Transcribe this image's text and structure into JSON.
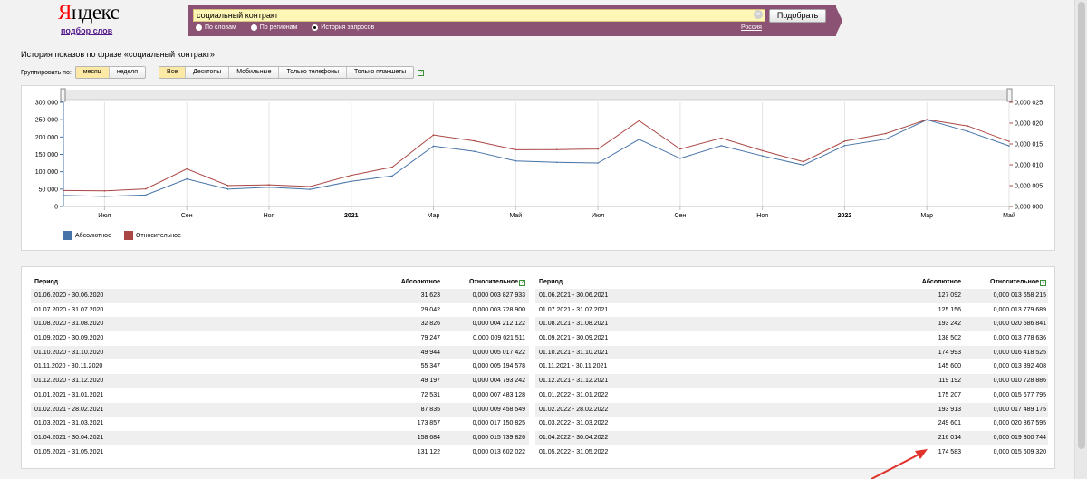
{
  "header": {
    "logo_first": "Я",
    "logo_rest": "ндекс",
    "logo_sub": "подбор слов",
    "search_value": "социальный контракт",
    "search_button": "Подобрать",
    "radios": [
      {
        "label": "По словам",
        "selected": false
      },
      {
        "label": "По регионам",
        "selected": false
      },
      {
        "label": "История запросов",
        "selected": true
      }
    ],
    "region": "Россия"
  },
  "history_title": "История показов по фразе «социальный контракт»",
  "grouping": {
    "label": "Группировать по:",
    "period_options": [
      {
        "label": "месяц",
        "active": true
      },
      {
        "label": "неделя",
        "active": false
      }
    ],
    "device_options": [
      {
        "label": "Все",
        "active": true
      },
      {
        "label": "Десктопы",
        "active": false
      },
      {
        "label": "Мобильные",
        "active": false
      },
      {
        "label": "Только телефоны",
        "active": false
      },
      {
        "label": "Только планшеты",
        "active": false
      }
    ],
    "help": "?"
  },
  "chart_data": {
    "type": "line",
    "x": [
      "2020-06",
      "2020-07",
      "2020-08",
      "2020-09",
      "2020-10",
      "2020-11",
      "2020-12",
      "2021-01",
      "2021-02",
      "2021-03",
      "2021-04",
      "2021-05",
      "2021-06",
      "2021-07",
      "2021-08",
      "2021-09",
      "2021-10",
      "2021-11",
      "2021-12",
      "2022-01",
      "2022-02",
      "2022-03",
      "2022-04",
      "2022-05"
    ],
    "x_tick_labels": [
      "Июл",
      "Сен",
      "Ноя",
      "2021",
      "Мар",
      "Май",
      "Июл",
      "Сен",
      "Ноя",
      "2022",
      "Мар",
      "Май"
    ],
    "series": [
      {
        "name": "Абсолютное",
        "color": "#4572a7",
        "axis": "left",
        "values": [
          31623,
          29042,
          32826,
          79247,
          49944,
          55347,
          49197,
          72531,
          87835,
          173857,
          158684,
          131122,
          127092,
          125156,
          193242,
          138502,
          174993,
          145600,
          119192,
          175207,
          193913,
          249601,
          216014,
          174583
        ]
      },
      {
        "name": "Относительное",
        "color": "#aa4643",
        "axis": "right",
        "values": [
          3.827933e-06,
          3.7289e-06,
          4.212122e-06,
          9.021511e-06,
          5.017422e-06,
          5.194578e-06,
          4.793242e-06,
          7.483128e-06,
          9.458549e-06,
          1.7150825e-05,
          1.5739826e-05,
          1.3602022e-05,
          1.3658215e-05,
          1.3779689e-05,
          2.0586841e-05,
          1.3778636e-05,
          1.6418525e-05,
          1.3392408e-05,
          1.0728886e-05,
          1.5677795e-05,
          1.7489175e-05,
          2.0867595e-05,
          1.9300744e-05,
          1.560932e-05
        ]
      }
    ],
    "y_left_ticks": [
      "0",
      "50 000",
      "100 000",
      "150 000",
      "200 000",
      "250 000",
      "300 000"
    ],
    "y_right_ticks": [
      "0,000 000",
      "0,000 005",
      "0,000 010",
      "0,000 015",
      "0,000 020",
      "0,000 025"
    ],
    "ylim_left": [
      0,
      300000
    ],
    "ylim_right": [
      0,
      2.5e-05
    ],
    "legend_placement": "bottom-left",
    "grid": true
  },
  "table": {
    "headers": {
      "period": "Период",
      "absolute": "Абсолютное",
      "relative": "Относительное",
      "help": "?"
    },
    "left": [
      {
        "period": "01.06.2020 - 30.06.2020",
        "absolute": "31 623",
        "relative": "0,000 003 827 933"
      },
      {
        "period": "01.07.2020 - 31.07.2020",
        "absolute": "29 042",
        "relative": "0,000 003 728 900"
      },
      {
        "period": "01.08.2020 - 31.08.2020",
        "absolute": "32 826",
        "relative": "0,000 004 212 122"
      },
      {
        "period": "01.09.2020 - 30.09.2020",
        "absolute": "79 247",
        "relative": "0,000 009 021 511"
      },
      {
        "period": "01.10.2020 - 31.10.2020",
        "absolute": "49 944",
        "relative": "0,000 005 017 422"
      },
      {
        "period": "01.11.2020 - 30.11.2020",
        "absolute": "55 347",
        "relative": "0,000 005 194 578"
      },
      {
        "period": "01.12.2020 - 31.12.2020",
        "absolute": "49 197",
        "relative": "0,000 004 793 242"
      },
      {
        "period": "01.01.2021 - 31.01.2021",
        "absolute": "72 531",
        "relative": "0,000 007 483 128"
      },
      {
        "period": "01.02.2021 - 28.02.2021",
        "absolute": "87 835",
        "relative": "0,000 009 458 549"
      },
      {
        "period": "01.03.2021 - 31.03.2021",
        "absolute": "173 857",
        "relative": "0,000 017 150 825"
      },
      {
        "period": "01.04.2021 - 30.04.2021",
        "absolute": "158 684",
        "relative": "0,000 015 739 826"
      },
      {
        "period": "01.05.2021 - 31.05.2021",
        "absolute": "131 122",
        "relative": "0,000 013 602 022"
      }
    ],
    "right": [
      {
        "period": "01.06.2021 - 30.06.2021",
        "absolute": "127 092",
        "relative": "0,000 013 658 215"
      },
      {
        "period": "01.07.2021 - 31.07.2021",
        "absolute": "125 156",
        "relative": "0,000 013 779 689"
      },
      {
        "period": "01.08.2021 - 31.08.2021",
        "absolute": "193 242",
        "relative": "0,000 020 586 841"
      },
      {
        "period": "01.09.2021 - 30.09.2021",
        "absolute": "138 502",
        "relative": "0,000 013 778 636"
      },
      {
        "period": "01.10.2021 - 31.10.2021",
        "absolute": "174 993",
        "relative": "0,000 016 418 525"
      },
      {
        "period": "01.11.2021 - 30.11.2021",
        "absolute": "145 600",
        "relative": "0,000 013 392 408"
      },
      {
        "period": "01.12.2021 - 31.12.2021",
        "absolute": "119 192",
        "relative": "0,000 010 728 886"
      },
      {
        "period": "01.01.2022 - 31.01.2022",
        "absolute": "175 207",
        "relative": "0,000 015 677 795"
      },
      {
        "period": "01.02.2022 - 28.02.2022",
        "absolute": "193 913",
        "relative": "0,000 017 489 175"
      },
      {
        "period": "01.03.2022 - 31.03.2022",
        "absolute": "249 601",
        "relative": "0,000 020 867 595"
      },
      {
        "period": "01.04.2022 - 30.04.2022",
        "absolute": "216 014",
        "relative": "0,000 019 300 744"
      },
      {
        "period": "01.05.2022 - 31.05.2022",
        "absolute": "174 583",
        "relative": "0,000 015 609 320"
      }
    ]
  },
  "colors": {
    "annotation_arrow": "#e0312b",
    "header_bar": "#8c5273"
  },
  "icons": {
    "clear": "clear-icon",
    "help": "help-icon",
    "arrow": "red-arrow-annotation"
  }
}
